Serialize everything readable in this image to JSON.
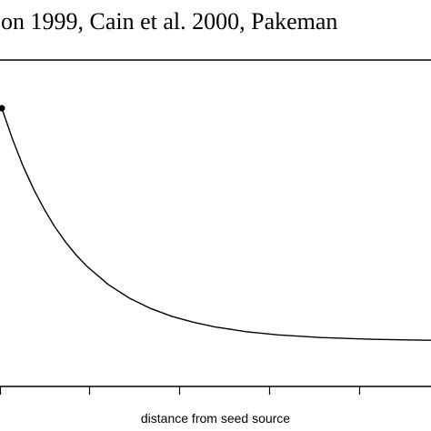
{
  "caption_fragment": "on 1999, Cain et al. 2000, Pakeman",
  "chart_data": {
    "type": "line",
    "xlabel": "distance from seed source",
    "ylabel": "",
    "title": "",
    "series": [
      {
        "x": [
          0,
          1,
          2,
          3,
          4,
          5,
          6,
          7,
          8,
          10,
          12,
          14,
          16,
          18,
          20,
          23,
          26,
          30,
          35,
          40,
          50,
          60,
          70,
          80,
          90,
          100
        ],
        "y": [
          1.0,
          0.867,
          0.751,
          0.651,
          0.565,
          0.49,
          0.425,
          0.369,
          0.321,
          0.243,
          0.184,
          0.14,
          0.106,
          0.081,
          0.061,
          0.04,
          0.026,
          0.015,
          0.007,
          0.003,
          0.001,
          0.0,
          0.0,
          0.0,
          0.0,
          0.0
        ]
      }
    ],
    "marker_at_start": true
  }
}
